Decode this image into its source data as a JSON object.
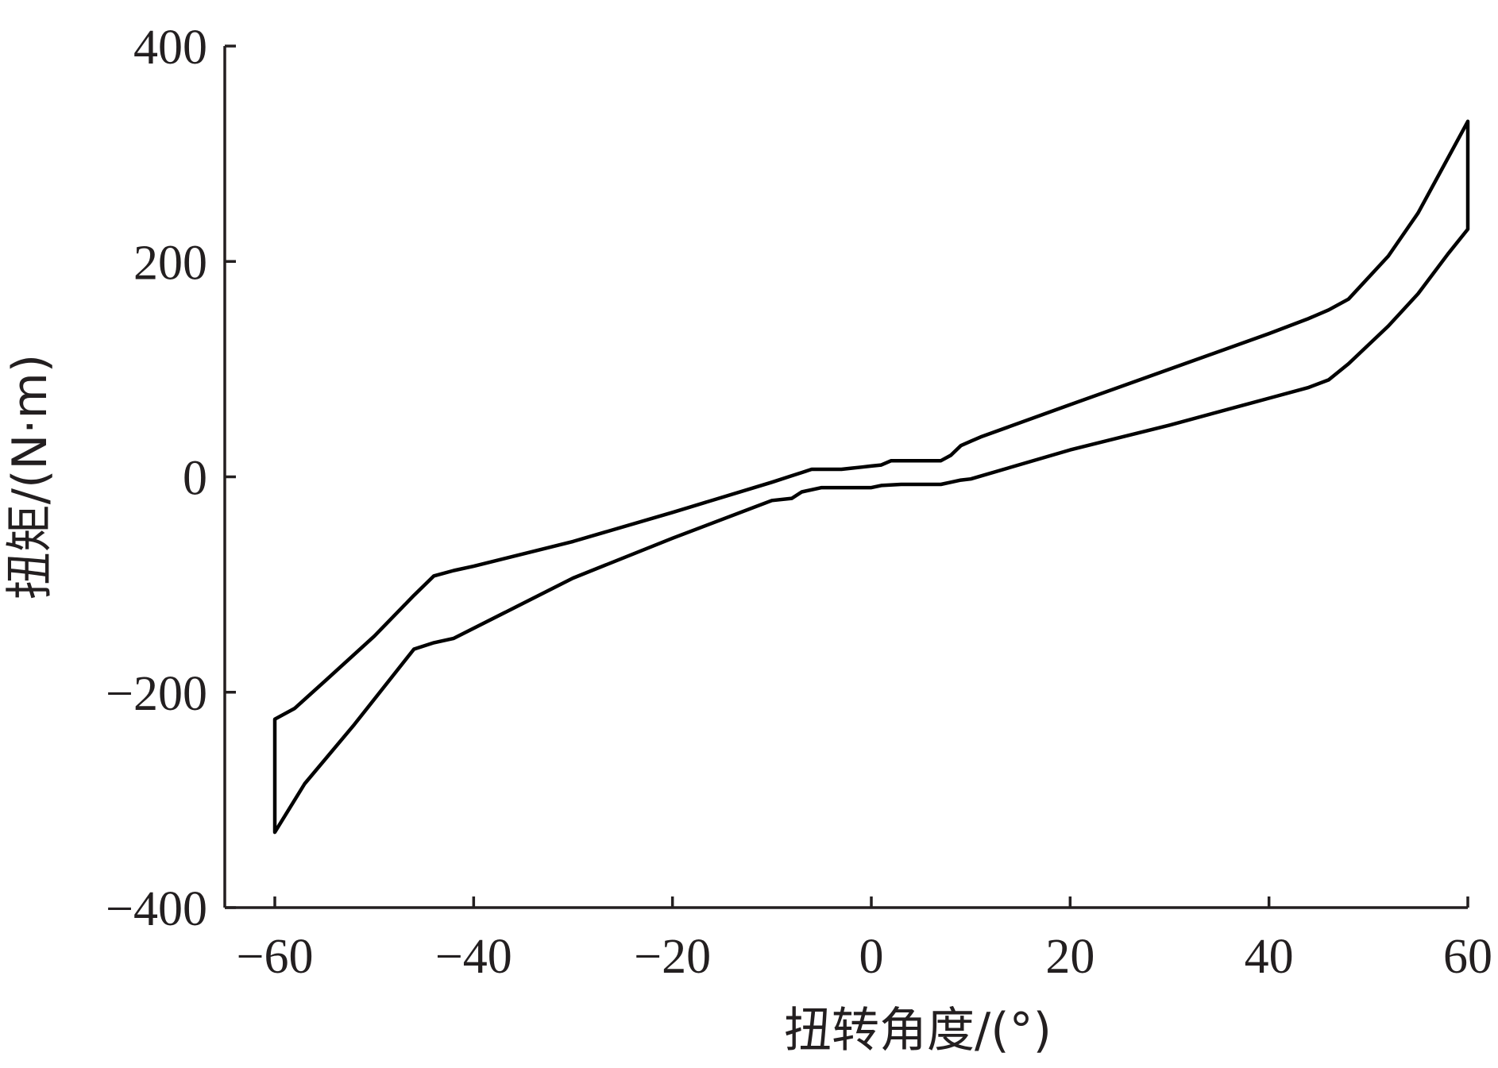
{
  "chart_data": {
    "type": "line",
    "title": "",
    "xlabel": "扭转角度/(°)",
    "ylabel": "扭矩/(N·m)",
    "xlim": [
      -60,
      60
    ],
    "ylim": [
      -400,
      400
    ],
    "x_ticks": [
      -60,
      -40,
      -20,
      0,
      20,
      40,
      60
    ],
    "x_tick_labels": [
      "−60",
      "−40",
      "−20",
      "0",
      "20",
      "40",
      "60"
    ],
    "y_ticks": [
      -400,
      -200,
      0,
      200,
      400
    ],
    "y_tick_labels": [
      "−400",
      "−200",
      "0",
      "200",
      "400"
    ],
    "grid": false,
    "legend": "none",
    "line_color": "#000000",
    "series": [
      {
        "points": [
          [
            60,
            330
          ],
          [
            58,
            296
          ],
          [
            55,
            245
          ],
          [
            52,
            205
          ],
          [
            48,
            165
          ],
          [
            46,
            155
          ],
          [
            44,
            147
          ],
          [
            40,
            133
          ],
          [
            30,
            100
          ],
          [
            20,
            67
          ],
          [
            11,
            37
          ],
          [
            10,
            33
          ],
          [
            9,
            29
          ],
          [
            8,
            20
          ],
          [
            7,
            15
          ],
          [
            5,
            15
          ],
          [
            2,
            15
          ],
          [
            1,
            11
          ],
          [
            0,
            10
          ],
          [
            -1,
            9
          ],
          [
            -2,
            8
          ],
          [
            -3,
            7
          ],
          [
            -5,
            7
          ],
          [
            -6,
            7
          ],
          [
            -7,
            4
          ],
          [
            -8,
            1
          ],
          [
            -10,
            -5
          ],
          [
            -20,
            -33
          ],
          [
            -30,
            -60
          ],
          [
            -40,
            -83
          ],
          [
            -42,
            -87
          ],
          [
            -44,
            -92
          ],
          [
            -46,
            -110
          ],
          [
            -50,
            -148
          ],
          [
            -55,
            -190
          ],
          [
            -58,
            -215
          ],
          [
            -60,
            -225
          ],
          [
            -60,
            -330
          ],
          [
            -57,
            -285
          ],
          [
            -52,
            -230
          ],
          [
            -46,
            -160
          ],
          [
            -44,
            -154
          ],
          [
            -42,
            -150
          ],
          [
            -30,
            -94
          ],
          [
            -20,
            -57
          ],
          [
            -10,
            -22
          ],
          [
            -8,
            -20
          ],
          [
            -7,
            -14
          ],
          [
            -5,
            -10
          ],
          [
            -3,
            -10
          ],
          [
            -1,
            -10
          ],
          [
            0,
            -10
          ],
          [
            1,
            -8
          ],
          [
            3,
            -7
          ],
          [
            5,
            -7
          ],
          [
            7,
            -7
          ],
          [
            8,
            -5
          ],
          [
            9,
            -3
          ],
          [
            10,
            -2
          ],
          [
            20,
            25
          ],
          [
            30,
            48
          ],
          [
            40,
            73
          ],
          [
            44,
            83
          ],
          [
            46,
            90
          ],
          [
            48,
            105
          ],
          [
            52,
            140
          ],
          [
            55,
            170
          ],
          [
            58,
            207
          ],
          [
            60,
            230
          ],
          [
            60,
            330
          ]
        ]
      }
    ]
  }
}
